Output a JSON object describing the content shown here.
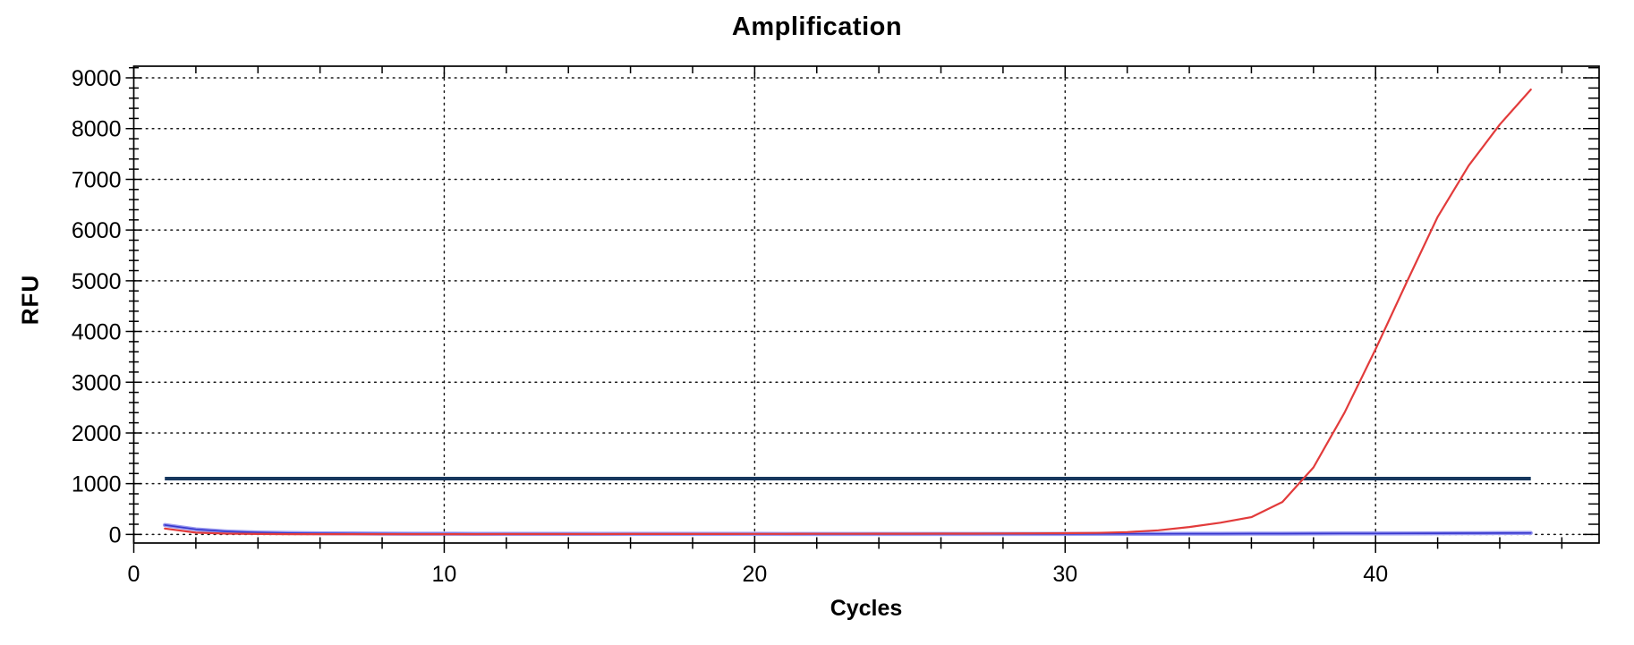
{
  "chart_data": {
    "type": "line",
    "title": "Amplification",
    "xlabel": "Cycles",
    "ylabel": "RFU",
    "xlim": [
      0,
      47.2
    ],
    "ylim": [
      -170,
      9230
    ],
    "x_ticks": [
      0,
      10,
      20,
      30,
      40
    ],
    "x_minor_step": 2,
    "y_ticks": [
      0,
      1000,
      2000,
      3000,
      4000,
      5000,
      6000,
      7000,
      8000,
      9000
    ],
    "y_minor_step": 200,
    "grid": "dotted black lines at every major tick, full frame with ticks on all four sides",
    "legend": "none",
    "x": [
      1,
      2,
      3,
      4,
      5,
      6,
      7,
      8,
      9,
      10,
      11,
      12,
      13,
      14,
      15,
      16,
      17,
      18,
      19,
      20,
      21,
      22,
      23,
      24,
      25,
      26,
      27,
      28,
      29,
      30,
      31,
      32,
      33,
      34,
      35,
      36,
      37,
      38,
      39,
      40,
      41,
      42,
      43,
      44,
      45
    ],
    "series": [
      {
        "name": "sample-trace-red",
        "color": "#e23b3b",
        "width": 2.2,
        "values": [
          115,
          35,
          15,
          8,
          5,
          4,
          4,
          4,
          4,
          5,
          5,
          6,
          6,
          7,
          7,
          8,
          8,
          9,
          9,
          10,
          10,
          11,
          12,
          13,
          14,
          15,
          16,
          18,
          20,
          24,
          30,
          45,
          80,
          145,
          230,
          340,
          640,
          1320,
          2400,
          3650,
          4970,
          6260,
          7270,
          8080,
          8770
        ]
      },
      {
        "name": "control-trace-blue",
        "color": "#3a3ace",
        "halo_color": "#9a9af0",
        "width": 1.7,
        "values": [
          185,
          100,
          58,
          38,
          28,
          22,
          18,
          16,
          14,
          13,
          12,
          12,
          11,
          11,
          10,
          10,
          10,
          10,
          10,
          10,
          9,
          9,
          9,
          9,
          8,
          8,
          8,
          8,
          8,
          9,
          10,
          11,
          12,
          13,
          14,
          15,
          16,
          17,
          18,
          19,
          20,
          22,
          24,
          26,
          28
        ]
      }
    ],
    "threshold": {
      "name": "threshold-line",
      "value": 1100,
      "x_start": 1,
      "x_end": 45,
      "color": "#17375e",
      "width": 4
    }
  },
  "colors": {
    "background": "#ffffff",
    "axis": "#000000",
    "grid_dots": "#1a1a1a",
    "text": "#000000"
  }
}
